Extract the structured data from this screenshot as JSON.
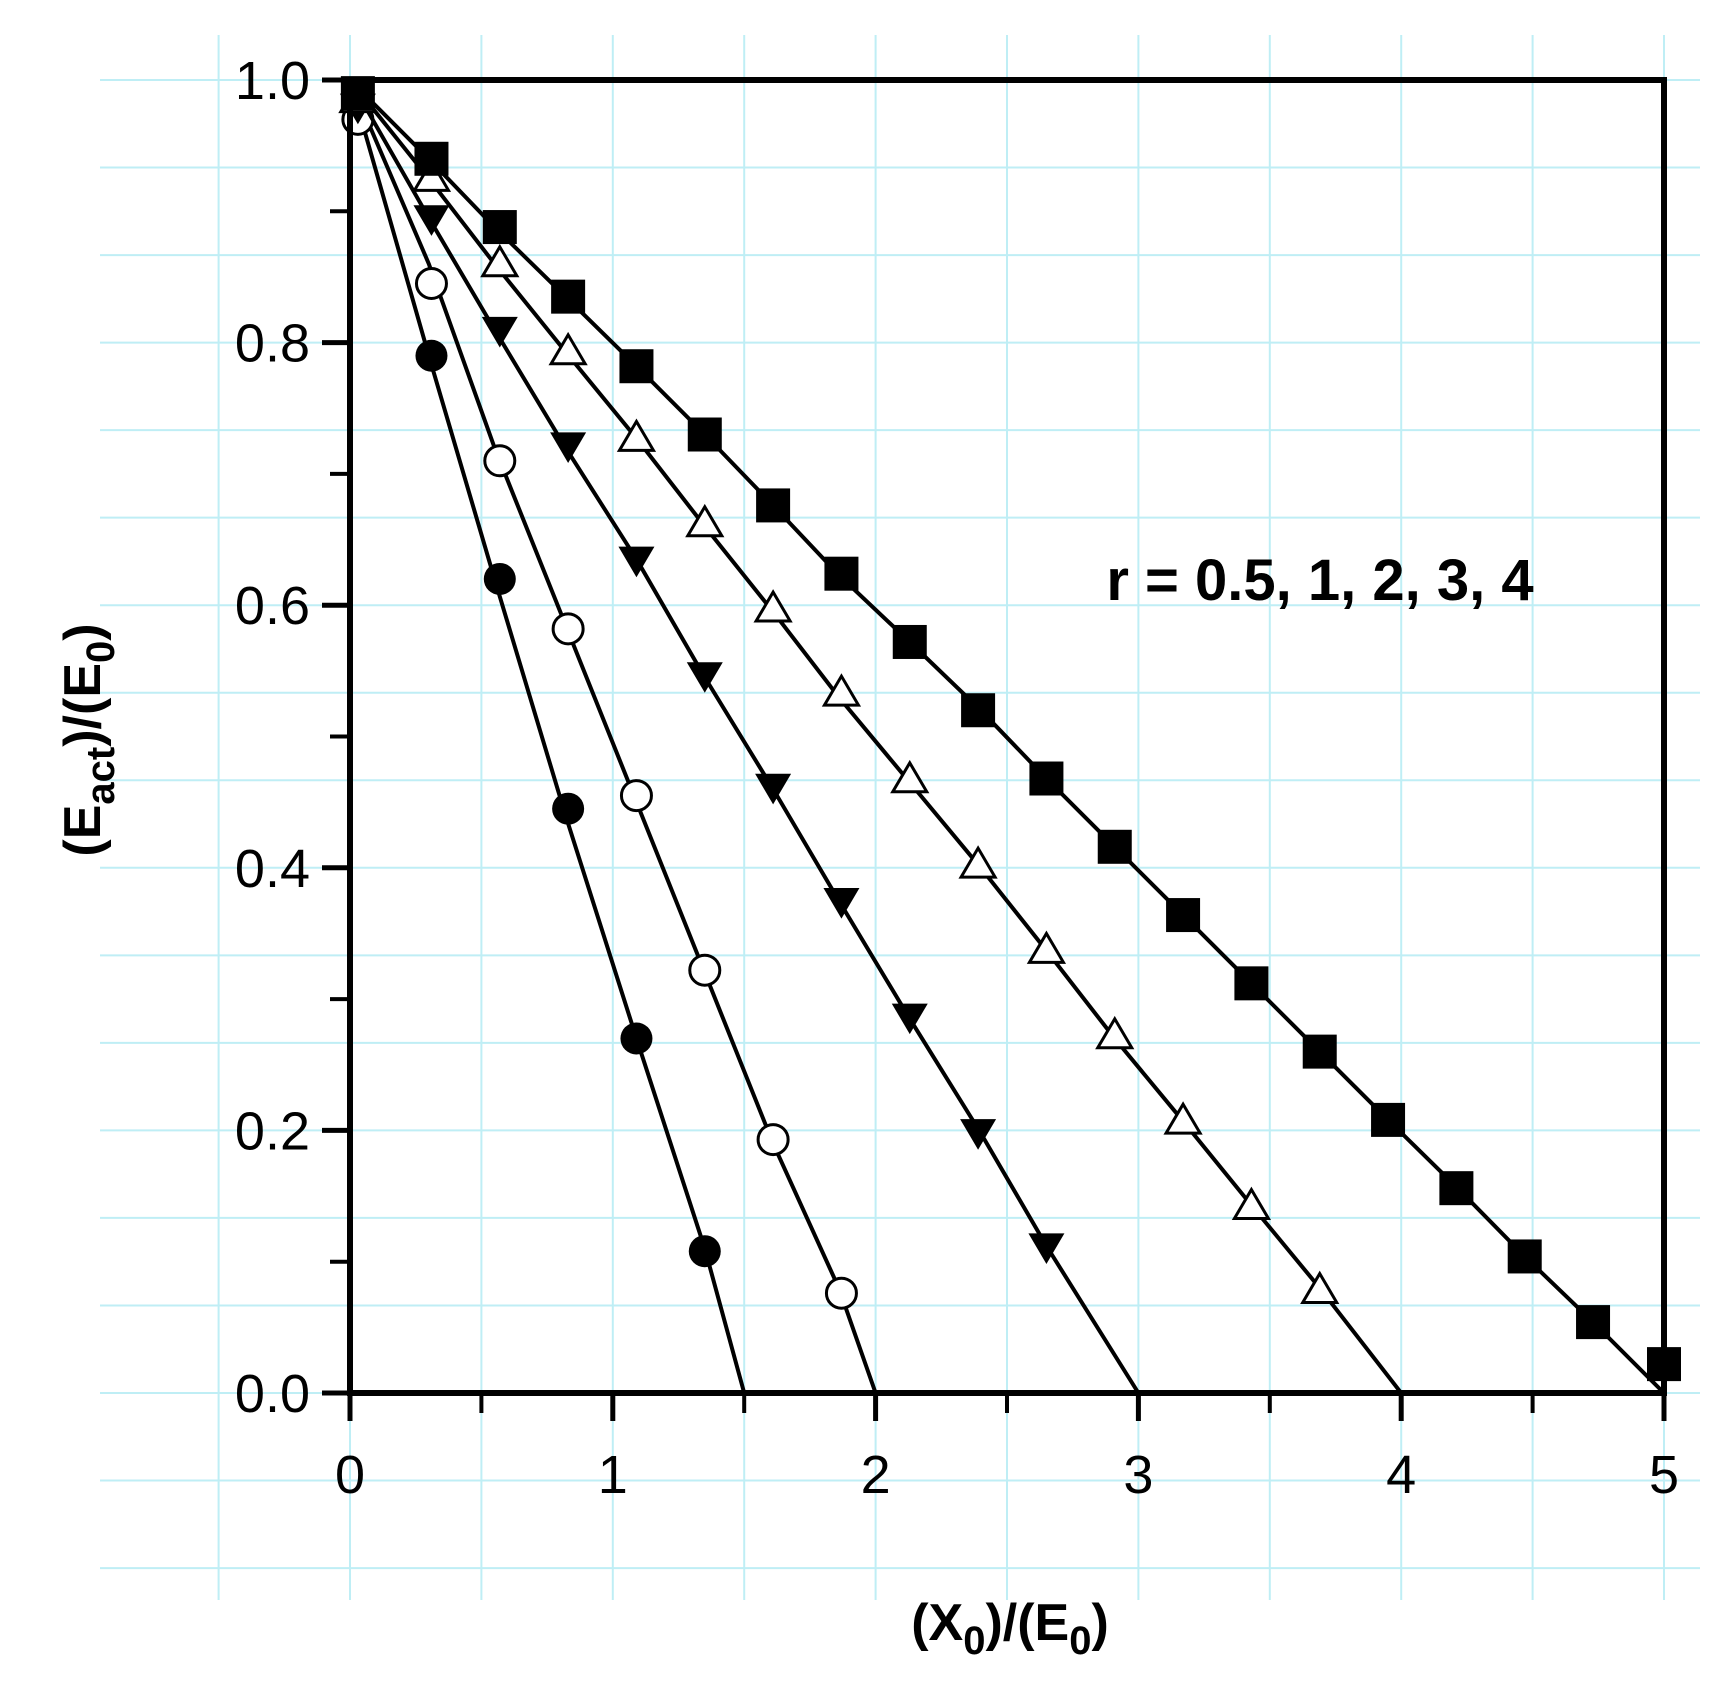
{
  "chart_data": {
    "type": "line",
    "xlabel": {
      "parts": [
        [
          "(X",
          false
        ],
        [
          "0",
          true
        ],
        [
          ")/(E",
          false
        ],
        [
          "0",
          true
        ],
        [
          ")",
          false
        ]
      ]
    },
    "ylabel": {
      "parts": [
        [
          "(E",
          false
        ],
        [
          "act",
          true
        ],
        [
          ")/(E",
          false
        ],
        [
          "0",
          true
        ],
        [
          ")",
          false
        ]
      ]
    },
    "xlim": [
      0,
      5
    ],
    "ylim": [
      0,
      1
    ],
    "x_ticks": [
      0,
      1,
      2,
      3,
      4,
      5
    ],
    "x_tick_labels": [
      "0",
      "1",
      "2",
      "3",
      "4",
      "5"
    ],
    "x_minor_ticks": [
      0.5,
      1.5,
      2.5,
      3.5,
      4.5
    ],
    "y_ticks": [
      0,
      0.2,
      0.4,
      0.6,
      0.8,
      1.0
    ],
    "y_tick_labels": [
      "0.0",
      "0.2",
      "0.4",
      "0.6",
      "0.8",
      "1.0"
    ],
    "y_minor_ticks": [
      0.1,
      0.3,
      0.5,
      0.7,
      0.9
    ],
    "grid": true,
    "grid_color": "#bfeef5",
    "annotation": "r = 0.5, 1, 2, 3, 4",
    "series": [
      {
        "marker": "filled-circle",
        "line": [
          [
            0,
            1.0
          ],
          [
            0.3,
            0.79
          ],
          [
            0.55,
            0.62
          ],
          [
            0.82,
            0.44
          ],
          [
            1.09,
            0.27
          ],
          [
            1.35,
            0.11
          ],
          [
            1.5,
            0.0
          ]
        ],
        "points": [
          [
            0.03,
            0.98
          ],
          [
            0.31,
            0.79
          ],
          [
            0.57,
            0.62
          ],
          [
            0.83,
            0.445
          ],
          [
            1.09,
            0.27
          ],
          [
            1.35,
            0.108
          ]
        ]
      },
      {
        "marker": "open-circle",
        "line": [
          [
            0,
            1.0
          ],
          [
            0.3,
            0.86
          ],
          [
            0.55,
            0.72
          ],
          [
            0.82,
            0.585
          ],
          [
            1.09,
            0.45
          ],
          [
            1.35,
            0.32
          ],
          [
            1.61,
            0.19
          ],
          [
            1.86,
            0.08
          ],
          [
            2.0,
            0.0
          ]
        ],
        "points": [
          [
            0.03,
            0.97
          ],
          [
            0.31,
            0.845
          ],
          [
            0.57,
            0.71
          ],
          [
            0.83,
            0.582
          ],
          [
            1.09,
            0.455
          ],
          [
            1.35,
            0.322
          ],
          [
            1.61,
            0.193
          ],
          [
            1.87,
            0.076
          ]
        ]
      },
      {
        "marker": "filled-triangle-down",
        "line": [
          [
            0,
            1.0
          ],
          [
            0.3,
            0.895
          ],
          [
            0.55,
            0.81
          ],
          [
            0.82,
            0.72
          ],
          [
            1.09,
            0.635
          ],
          [
            1.35,
            0.545
          ],
          [
            1.61,
            0.46
          ],
          [
            1.86,
            0.375
          ],
          [
            2.13,
            0.285
          ],
          [
            2.4,
            0.198
          ],
          [
            2.65,
            0.112
          ],
          [
            3.0,
            0.0
          ]
        ],
        "points": [
          [
            0.03,
            0.98
          ],
          [
            0.31,
            0.895
          ],
          [
            0.57,
            0.81
          ],
          [
            0.83,
            0.722
          ],
          [
            1.09,
            0.635
          ],
          [
            1.35,
            0.547
          ],
          [
            1.61,
            0.462
          ],
          [
            1.87,
            0.375
          ],
          [
            2.13,
            0.287
          ],
          [
            2.39,
            0.199
          ],
          [
            2.65,
            0.112
          ]
        ]
      },
      {
        "marker": "open-triangle-up",
        "line": [
          [
            0,
            1.0
          ],
          [
            0.3,
            0.925
          ],
          [
            0.55,
            0.86
          ],
          [
            0.82,
            0.793
          ],
          [
            1.09,
            0.727
          ],
          [
            1.35,
            0.66
          ],
          [
            1.61,
            0.595
          ],
          [
            1.86,
            0.53
          ],
          [
            2.13,
            0.465
          ],
          [
            2.4,
            0.4
          ],
          [
            2.65,
            0.337
          ],
          [
            2.91,
            0.27
          ],
          [
            3.17,
            0.207
          ],
          [
            3.43,
            0.143
          ],
          [
            3.69,
            0.08
          ],
          [
            4.0,
            0.0
          ]
        ],
        "points": [
          [
            0.03,
            0.985
          ],
          [
            0.31,
            0.925
          ],
          [
            0.57,
            0.86
          ],
          [
            0.83,
            0.793
          ],
          [
            1.09,
            0.727
          ],
          [
            1.35,
            0.662
          ],
          [
            1.61,
            0.597
          ],
          [
            1.87,
            0.533
          ],
          [
            2.13,
            0.467
          ],
          [
            2.39,
            0.402
          ],
          [
            2.65,
            0.337
          ],
          [
            2.91,
            0.272
          ],
          [
            3.17,
            0.207
          ],
          [
            3.43,
            0.142
          ],
          [
            3.69,
            0.078
          ]
        ]
      },
      {
        "marker": "filled-square",
        "line": [
          [
            0,
            1.0
          ],
          [
            0.3,
            0.94
          ],
          [
            0.55,
            0.888
          ],
          [
            0.82,
            0.835
          ],
          [
            1.09,
            0.782
          ],
          [
            1.35,
            0.73
          ],
          [
            1.61,
            0.676
          ],
          [
            1.86,
            0.623
          ],
          [
            2.13,
            0.572
          ],
          [
            2.4,
            0.52
          ],
          [
            2.65,
            0.468
          ],
          [
            2.91,
            0.416
          ],
          [
            3.17,
            0.364
          ],
          [
            3.43,
            0.312
          ],
          [
            3.69,
            0.26
          ],
          [
            3.95,
            0.208
          ],
          [
            4.21,
            0.157
          ],
          [
            4.47,
            0.104
          ],
          [
            4.73,
            0.054
          ],
          [
            5.0,
            0.0
          ]
        ],
        "points": [
          [
            0.03,
            0.99
          ],
          [
            0.31,
            0.94
          ],
          [
            0.57,
            0.888
          ],
          [
            0.83,
            0.835
          ],
          [
            1.09,
            0.782
          ],
          [
            1.35,
            0.73
          ],
          [
            1.61,
            0.676
          ],
          [
            1.87,
            0.624
          ],
          [
            2.13,
            0.572
          ],
          [
            2.39,
            0.52
          ],
          [
            2.65,
            0.468
          ],
          [
            2.91,
            0.416
          ],
          [
            3.17,
            0.364
          ],
          [
            3.43,
            0.312
          ],
          [
            3.69,
            0.26
          ],
          [
            3.95,
            0.208
          ],
          [
            4.21,
            0.156
          ],
          [
            4.47,
            0.104
          ],
          [
            4.73,
            0.054
          ],
          [
            5.0,
            0.022
          ]
        ]
      }
    ]
  }
}
